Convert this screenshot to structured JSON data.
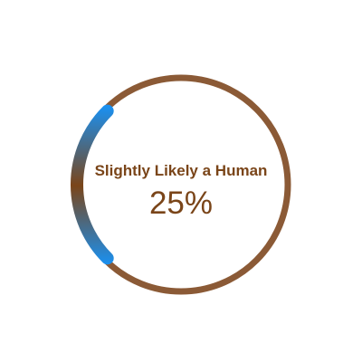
{
  "gauge": {
    "label": "Slightly Likely a Human",
    "value_text": "25%",
    "progress_fraction": 0.25
  },
  "colors": {
    "track": "#8b5a36",
    "progress_start": "#1a90f0",
    "progress_mid": "#7a4519",
    "text": "#7a4519"
  }
}
